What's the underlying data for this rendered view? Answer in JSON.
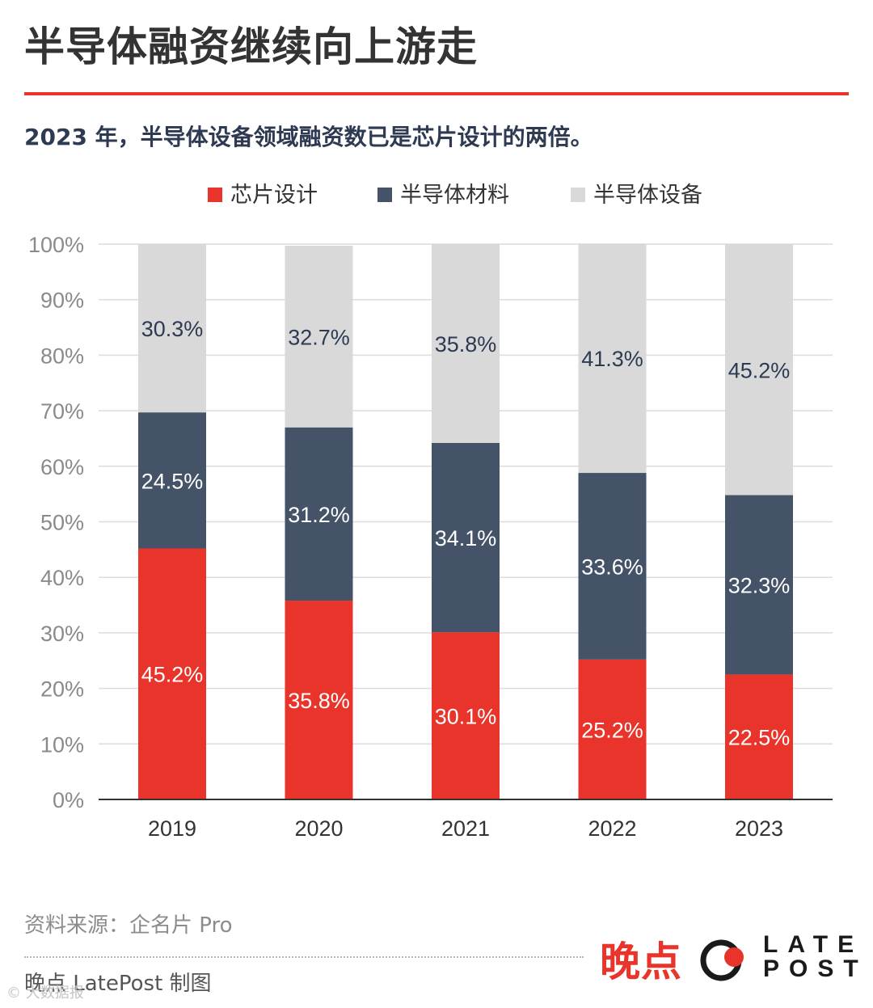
{
  "title": "半导体融资继续向上游走",
  "subtitle": "2023 年，半导体设备领域融资数已是芯片设计的两倍。",
  "colors": {
    "accent": "#e8342a",
    "chip_design": "#e8342a",
    "materials": "#455369",
    "equipment": "#d9d9d9"
  },
  "chart_data": {
    "type": "bar",
    "stacked": true,
    "categories": [
      "2019",
      "2020",
      "2021",
      "2022",
      "2023"
    ],
    "series": [
      {
        "name": "芯片设计",
        "values": [
          45.2,
          35.8,
          30.1,
          25.2,
          22.5
        ],
        "labels": [
          "45.2%",
          "35.8%",
          "30.1%",
          "25.2%",
          "22.5%"
        ]
      },
      {
        "name": "半导体材料",
        "values": [
          24.5,
          31.2,
          34.1,
          33.6,
          32.3
        ],
        "labels": [
          "24.5%",
          "31.2%",
          "34.1%",
          "33.6%",
          "32.3%"
        ]
      },
      {
        "name": "半导体设备",
        "values": [
          30.3,
          32.7,
          35.8,
          41.3,
          45.2
        ],
        "labels": [
          "30.3%",
          "32.7%",
          "35.8%",
          "41.3%",
          "45.2%"
        ]
      }
    ],
    "y_ticks": [
      "0%",
      "10%",
      "20%",
      "30%",
      "40%",
      "50%",
      "60%",
      "70%",
      "80%",
      "90%",
      "100%"
    ],
    "ylim": [
      0,
      100
    ],
    "legend_position": "top-center",
    "grid": true
  },
  "source": "资料来源：企名片 Pro",
  "credit": "晚点 LatePost 制图",
  "brand": {
    "cn": "晚点",
    "en_line1": "LATE",
    "en_line2": "POST"
  },
  "watermark_text": "© 大数据报"
}
